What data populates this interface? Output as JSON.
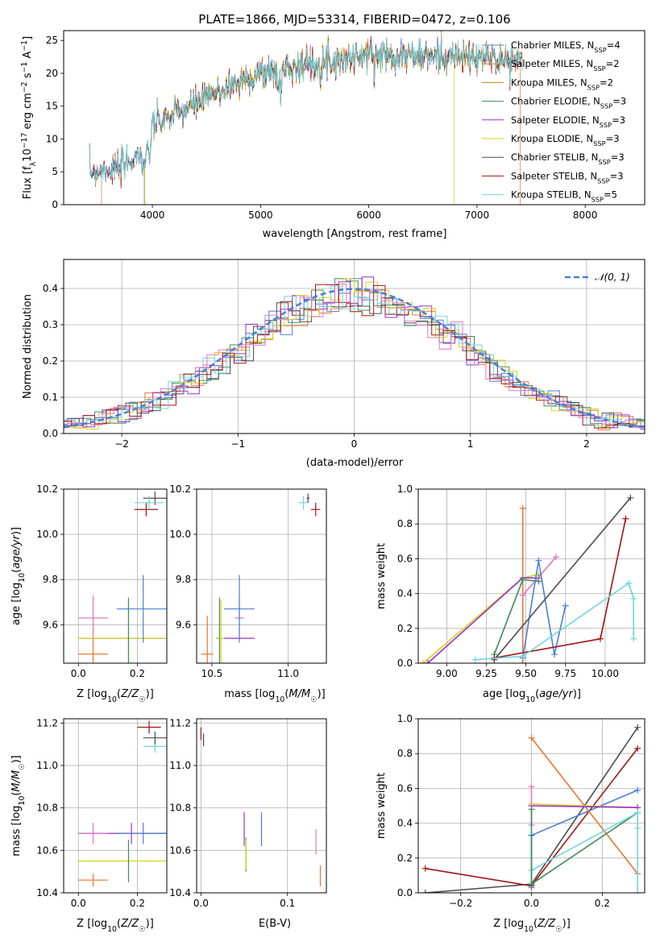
{
  "colors": {
    "Chabrier MILES": "#4a7fd6",
    "Salpeter MILES": "#e8762c",
    "Kroupa MILES": "#b8860b",
    "Chabrier ELODIE": "#3d8c5a",
    "Salpeter ELODIE": "#9b30c8",
    "Kroupa ELODIE": "#d4d41c",
    "Chabrier STELIB": "#4d4d4d",
    "Salpeter STELIB": "#a31515",
    "Kroupa STELIB": "#6fd6dc",
    "pink": "#e377c2",
    "gauss": "#4a7fd6"
  },
  "chart_data": [
    {
      "type": "line",
      "title": "PLATE=1866, MJD=53314, FIBERID=0472, z=0.106",
      "xlabel": "wavelength [Angstrom, rest frame]",
      "ylabel": "Flux [f_λ10^-17 erg cm^-2 s^-1 A^-1]",
      "xlim": [
        3180,
        8550
      ],
      "ylim": [
        0,
        26.5
      ],
      "xticks": [
        4000,
        5000,
        6000,
        7000,
        8000
      ],
      "yticks": [
        0,
        5,
        10,
        15,
        20,
        25
      ],
      "legend_position": "right",
      "series": [
        {
          "name": "Chabrier MILES",
          "nssp": "4"
        },
        {
          "name": "Salpeter MILES",
          "nssp": "2"
        },
        {
          "name": "Kroupa MILES",
          "nssp": "2"
        },
        {
          "name": "Chabrier ELODIE",
          "nssp": "3"
        },
        {
          "name": "Salpeter ELODIE",
          "nssp": "3"
        },
        {
          "name": "Kroupa ELODIE",
          "nssp": "3"
        },
        {
          "name": "Chabrier STELIB",
          "nssp": "3"
        },
        {
          "name": "Salpeter STELIB",
          "nssp": "3"
        },
        {
          "name": "Kroupa STELIB",
          "nssp": "5"
        }
      ],
      "continuum": {
        "x": [
          3420,
          3700,
          3900,
          4000,
          4300,
          4700,
          5000,
          5300,
          5700,
          6000,
          6300,
          6700,
          7000,
          7400
        ],
        "y": [
          5.0,
          5.5,
          8.0,
          12.0,
          14.5,
          18.0,
          20.0,
          21.0,
          22.0,
          22.8,
          22.8,
          22.5,
          22.3,
          22.0
        ]
      }
    },
    {
      "type": "bar",
      "xlabel": "(data-model)/error",
      "ylabel": "Normed distribution",
      "xlim": [
        -2.5,
        2.5
      ],
      "ylim": [
        0,
        0.48
      ],
      "xticks": [
        -2,
        -1,
        0,
        1,
        2
      ],
      "yticks": [
        0.0,
        0.1,
        0.2,
        0.3,
        0.4
      ],
      "legend_label": "𝒩(0, 1)",
      "legend_position": "upper right",
      "bin_width": 0.1
    },
    {
      "type": "scatter",
      "xlabel": "Z [log10(Z/Z☉)]",
      "ylabel": "age  [log10(age/yr)]",
      "xlim": [
        -0.05,
        0.3
      ],
      "ylim": [
        9.43,
        10.2
      ],
      "xticks": [
        0.0,
        0.2
      ],
      "yticks": [
        9.6,
        9.8,
        10.0,
        10.2
      ],
      "points": [
        {
          "s": "Salpeter MILES",
          "x": 0.05,
          "y": 9.47,
          "xerr": 0.05,
          "yerr": 0.17
        },
        {
          "s": "pink",
          "x": 0.05,
          "y": 9.63,
          "xerr": 0.05,
          "yerr": 0.1
        },
        {
          "s": "Salpeter ELODIE",
          "x": 0.17,
          "y": 9.54,
          "xerr": 0.17,
          "yerr": 0.0
        },
        {
          "s": "Kroupa ELODIE",
          "x": 0.17,
          "y": 9.54,
          "xerr": 0.17,
          "yerr": 0.17
        },
        {
          "s": "Chabrier ELODIE",
          "x": 0.17,
          "y": 9.54,
          "xerr": 0.0,
          "yerr": 0.18
        },
        {
          "s": "Chabrier MILES",
          "x": 0.22,
          "y": 9.67,
          "xerr": 0.09,
          "yerr": 0.15
        },
        {
          "s": "Salpeter STELIB",
          "x": 0.23,
          "y": 10.11,
          "xerr": 0.04,
          "yerr": 0.03
        },
        {
          "s": "Chabrier STELIB",
          "x": 0.26,
          "y": 10.16,
          "xerr": 0.04,
          "yerr": 0.03
        },
        {
          "s": "Kroupa STELIB",
          "x": 0.24,
          "y": 10.14,
          "xerr": 0.05,
          "yerr": 0.03
        }
      ]
    },
    {
      "type": "scatter",
      "xlabel": "mass [log10(M/M☉)]",
      "ylim": [
        9.43,
        10.2
      ],
      "xlim": [
        10.4,
        11.25
      ],
      "xticks": [
        10.5,
        11.0
      ],
      "yticks": [
        9.6,
        9.8,
        10.0,
        10.2
      ],
      "points": [
        {
          "s": "Salpeter MILES",
          "x": 10.47,
          "y": 9.47,
          "xerr": 0.04,
          "yerr": 0.17
        },
        {
          "s": "Chabrier ELODIE",
          "x": 10.55,
          "y": 9.54,
          "xerr": 0.02,
          "yerr": 0.18
        },
        {
          "s": "Kroupa ELODIE",
          "x": 10.56,
          "y": 9.54,
          "xerr": 0.02,
          "yerr": 0.17
        },
        {
          "s": "pink",
          "x": 10.68,
          "y": 9.63,
          "xerr": 0.03,
          "yerr": 0.1
        },
        {
          "s": "Salpeter ELODIE",
          "x": 10.68,
          "y": 9.54,
          "xerr": 0.1,
          "yerr": 0.0
        },
        {
          "s": "Chabrier MILES",
          "x": 10.68,
          "y": 9.67,
          "xerr": 0.1,
          "yerr": 0.15
        },
        {
          "s": "Kroupa STELIB",
          "x": 11.1,
          "y": 10.14,
          "xerr": 0.03,
          "yerr": 0.03
        },
        {
          "s": "Chabrier STELIB",
          "x": 11.13,
          "y": 10.16,
          "xerr": 0.01,
          "yerr": 0.02
        },
        {
          "s": "Salpeter STELIB",
          "x": 11.18,
          "y": 10.11,
          "xerr": 0.03,
          "yerr": 0.03
        }
      ]
    },
    {
      "type": "line",
      "xlabel": "age  [log10(age/yr)]",
      "ylabel": "mass weight",
      "xlim": [
        8.82,
        10.25
      ],
      "ylim": [
        0,
        1.0
      ],
      "xticks": [
        9.0,
        9.25,
        9.5,
        9.75,
        10.0
      ],
      "xticklabels": [
        "9.00",
        "9.25",
        "9.50",
        "9.75",
        "10.00"
      ],
      "yticks": [
        0.0,
        0.2,
        0.4,
        0.6,
        0.8,
        1.0
      ],
      "series": [
        {
          "s": "Kroupa ELODIE",
          "x": [
            8.85,
            9.48,
            9.58
          ],
          "y": [
            0.0,
            0.49,
            0.51
          ]
        },
        {
          "s": "Salpeter ELODIE",
          "x": [
            8.88,
            9.48,
            9.58
          ],
          "y": [
            0.0,
            0.49,
            0.49
          ]
        },
        {
          "s": "Salpeter MILES",
          "x": [
            9.48,
            9.48
          ],
          "y": [
            0.0,
            0.89
          ]
        },
        {
          "s": "pink",
          "x": [
            9.48,
            9.69
          ],
          "y": [
            0.39,
            0.61
          ]
        },
        {
          "s": "Chabrier ELODIE",
          "x": [
            9.3,
            9.48,
            9.58
          ],
          "y": [
            0.05,
            0.48,
            0.47
          ]
        },
        {
          "s": "Chabrier MILES",
          "x": [
            9.48,
            9.58,
            9.68,
            9.75
          ],
          "y": [
            0.03,
            0.59,
            0.05,
            0.33
          ]
        },
        {
          "s": "Chabrier STELIB",
          "x": [
            9.3,
            10.16
          ],
          "y": [
            0.02,
            0.95
          ]
        },
        {
          "s": "Salpeter STELIB",
          "x": [
            9.3,
            9.97,
            10.13
          ],
          "y": [
            0.03,
            0.14,
            0.83
          ]
        },
        {
          "s": "Kroupa STELIB",
          "x": [
            9.18,
            9.48,
            10.15,
            10.18,
            10.18
          ],
          "y": [
            0.02,
            0.04,
            0.46,
            0.37,
            0.14
          ]
        }
      ]
    },
    {
      "type": "scatter",
      "xlabel": "Z [log10(Z/Z☉)]",
      "ylabel": "mass [log10(M/M☉)]",
      "xlim": [
        -0.05,
        0.3
      ],
      "ylim": [
        10.4,
        11.22
      ],
      "xticks": [
        0.0,
        0.2
      ],
      "yticks": [
        10.4,
        10.6,
        10.8,
        11.0,
        11.2
      ],
      "points": [
        {
          "s": "Salpeter MILES",
          "x": 0.05,
          "y": 10.46,
          "xerr": 0.05,
          "yerr": 0.03
        },
        {
          "s": "Kroupa ELODIE",
          "x": 0.17,
          "y": 10.55,
          "xerr": 0.17,
          "yerr": 0.0
        },
        {
          "s": "Chabrier ELODIE",
          "x": 0.17,
          "y": 10.55,
          "xerr": 0.0,
          "yerr": 0.1
        },
        {
          "s": "Salpeter ELODIE",
          "x": 0.18,
          "y": 10.68,
          "xerr": 0.18,
          "yerr": 0.05
        },
        {
          "s": "pink",
          "x": 0.05,
          "y": 10.68,
          "xerr": 0.05,
          "yerr": 0.05
        },
        {
          "s": "Chabrier MILES",
          "x": 0.22,
          "y": 10.68,
          "xerr": 0.09,
          "yerr": 0.05
        },
        {
          "s": "Kroupa STELIB",
          "x": 0.26,
          "y": 11.09,
          "xerr": 0.04,
          "yerr": 0.03
        },
        {
          "s": "Chabrier STELIB",
          "x": 0.26,
          "y": 11.13,
          "xerr": 0.04,
          "yerr": 0.03
        },
        {
          "s": "Salpeter STELIB",
          "x": 0.24,
          "y": 11.18,
          "xerr": 0.04,
          "yerr": 0.03
        }
      ]
    },
    {
      "type": "scatter",
      "xlabel": "E(B-V)",
      "xlim": [
        -0.005,
        0.145
      ],
      "ylim": [
        10.4,
        11.22
      ],
      "xticks": [
        0.0,
        0.1
      ],
      "yticks": [
        10.4,
        10.6,
        10.8,
        11.0,
        11.2
      ],
      "points": [
        {
          "s": "Salpeter STELIB",
          "x": 0.0,
          "y": 11.15,
          "yerr": 0.03
        },
        {
          "s": "Chabrier STELIB",
          "x": 0.003,
          "y": 11.12,
          "yerr": 0.03
        },
        {
          "s": "Salpeter ELODIE",
          "x": 0.05,
          "y": 10.7,
          "yerr": 0.08
        },
        {
          "s": "Chabrier ELODIE",
          "x": 0.052,
          "y": 10.58,
          "yerr": 0.08
        },
        {
          "s": "Kroupa ELODIE",
          "x": 0.052,
          "y": 10.58,
          "yerr": 0.07
        },
        {
          "s": "Chabrier MILES",
          "x": 0.07,
          "y": 10.7,
          "yerr": 0.08
        },
        {
          "s": "pink",
          "x": 0.133,
          "y": 10.64,
          "yerr": 0.06
        },
        {
          "s": "Salpeter MILES",
          "x": 0.138,
          "y": 10.48,
          "yerr": 0.05
        }
      ]
    },
    {
      "type": "line",
      "xlabel": "Z [log10(Z/Z☉)]",
      "ylabel": "mass weight",
      "xlim": [
        -0.32,
        0.32
      ],
      "ylim": [
        0,
        1.0
      ],
      "xticks": [
        -0.2,
        0.0,
        0.2
      ],
      "xticklabels": [
        "−0.2",
        "0.0",
        "0.2"
      ],
      "yticks": [
        0.0,
        0.2,
        0.4,
        0.6,
        0.8,
        1.0
      ],
      "series": [
        {
          "s": "Chabrier STELIB",
          "x": [
            -0.3,
            0.0,
            0.3
          ],
          "y": [
            0.0,
            0.05,
            0.95
          ]
        },
        {
          "s": "Salpeter STELIB",
          "x": [
            -0.3,
            0.0,
            0.3
          ],
          "y": [
            0.14,
            0.04,
            0.83
          ]
        },
        {
          "s": "Salpeter MILES",
          "x": [
            0.0,
            0.3
          ],
          "y": [
            0.89,
            0.11
          ]
        },
        {
          "s": "Chabrier MILES",
          "x": [
            0.0,
            0.3
          ],
          "y": [
            0.33,
            0.59
          ]
        },
        {
          "s": "Kroupa ELODIE",
          "x": [
            0.0,
            0.3
          ],
          "y": [
            0.51,
            0.49
          ]
        },
        {
          "s": "Salpeter ELODIE",
          "x": [
            0.0,
            0.3
          ],
          "y": [
            0.5,
            0.49
          ]
        },
        {
          "s": "Chabrier ELODIE",
          "x": [
            0.0,
            0.3
          ],
          "y": [
            0.05,
            0.46
          ]
        },
        {
          "s": "Kroupa STELIB",
          "x": [
            0.0,
            0.3,
            0.3
          ],
          "y": [
            0.13,
            0.46,
            0.37
          ]
        },
        {
          "s": "pink",
          "x": [
            0.0,
            0.0
          ],
          "y": [
            0.39,
            0.61
          ]
        },
        {
          "s": "Chabrier MILES",
          "x": [
            0.0,
            0.0
          ],
          "y": [
            0.03,
            0.33
          ]
        },
        {
          "s": "Chabrier ELODIE",
          "x": [
            0.0,
            0.0
          ],
          "y": [
            0.05,
            0.48
          ]
        },
        {
          "s": "Kroupa STELIB",
          "x": [
            0.3,
            0.3
          ],
          "y": [
            0.0,
            0.46
          ]
        }
      ]
    }
  ]
}
